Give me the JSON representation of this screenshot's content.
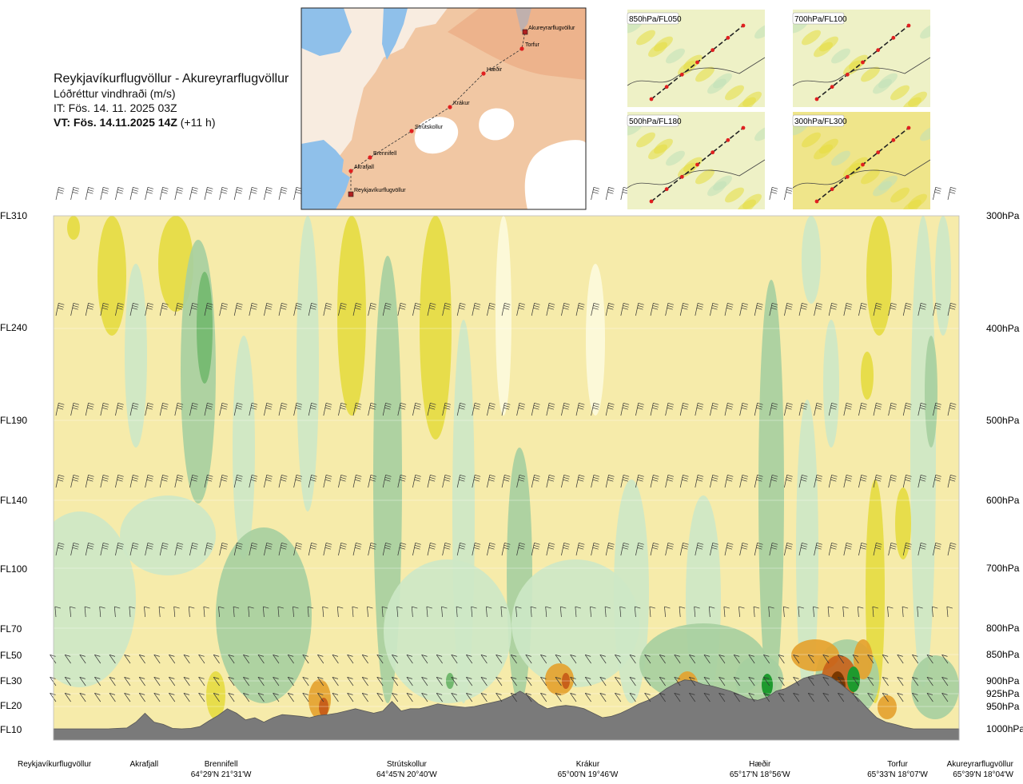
{
  "header": {
    "title": "Reykjavíkurflugvöllur - Akureyrarflugvöllur",
    "subtitle": "Lóðréttur vindhraði (m/s)",
    "issue_time": "IT: Fös. 14. 11. 2025 03Z",
    "valid_time_bold": "VT: Fös. 14.11.2025 14Z",
    "valid_time_offset": "(+11 h)"
  },
  "inset_map": {
    "points": [
      {
        "name": "Akureyrarflugvöllur"
      },
      {
        "name": "Torfur"
      },
      {
        "name": "Hæðir"
      },
      {
        "name": "Krákur"
      },
      {
        "name": "Strútskollur"
      },
      {
        "name": "Brennifell"
      },
      {
        "name": "Akrafjall"
      },
      {
        "name": "Reykjavíkurflugvöllur"
      }
    ]
  },
  "level_panels": [
    {
      "label": "850hPa/FL050"
    },
    {
      "label": "700hPa/FL100"
    },
    {
      "label": "500hPa/FL180"
    },
    {
      "label": "300hPa/FL300"
    }
  ],
  "chart_data": {
    "type": "heatmap",
    "title": "Reykjavíkurflugvöllur - Akureyrarflugvöllur",
    "subtitle": "Lóðréttur vindhraði (m/s)",
    "left_axis_ticks": [
      "FL310",
      "FL240",
      "FL190",
      "FL140",
      "FL100",
      "FL70",
      "FL50",
      "FL30",
      "FL20",
      "FL10"
    ],
    "right_axis_ticks": [
      "300hPa",
      "400hPa",
      "500hPa",
      "600hPa",
      "700hPa",
      "800hPa",
      "850hPa",
      "900hPa",
      "925hPa",
      "950hPa",
      "1000hPa"
    ],
    "pressure_levels_hpa": [
      300,
      400,
      500,
      600,
      700,
      800,
      850,
      900,
      925,
      950,
      1000
    ],
    "waypoints": [
      {
        "name": "Reykjavíkurflugvöllur",
        "coord": "",
        "dist": 0
      },
      {
        "name": "Akrafjall",
        "coord": "",
        "dist": 0.1
      },
      {
        "name": "Brennifell",
        "coord": "64°29'N 21°31'W",
        "dist": 0.185
      },
      {
        "name": "Strútskollur",
        "coord": "64°45'N 20°40'W",
        "dist": 0.39
      },
      {
        "name": "Krákur",
        "coord": "65°00'N 19°46'W",
        "dist": 0.59
      },
      {
        "name": "Hæðir",
        "coord": "65°17'N 18°56'W",
        "dist": 0.78
      },
      {
        "name": "Torfur",
        "coord": "65°33'N 18°07'W",
        "dist": 0.955
      },
      {
        "name": "Akureyrarflugvöllur",
        "coord": "65°39'N 18°04'W",
        "dist": 1.0
      }
    ],
    "terrain_elevation_hpa": [
      1000,
      1000,
      1000,
      1000,
      1000,
      1000,
      1000,
      999,
      998,
      985,
      965,
      985,
      990,
      999,
      1000,
      999,
      995,
      982,
      970,
      955,
      965,
      980,
      975,
      985,
      975,
      968,
      970,
      972,
      975,
      970,
      968,
      965,
      960,
      955,
      960,
      965,
      960,
      940,
      960,
      955,
      955,
      950,
      945,
      948,
      950,
      952,
      950,
      946,
      942,
      938,
      930,
      920,
      930,
      945,
      955,
      950,
      948,
      950,
      955,
      965,
      975,
      972,
      965,
      955,
      945,
      938,
      928,
      915,
      905,
      898,
      900,
      907,
      910,
      915,
      920,
      927,
      935,
      938,
      932,
      920,
      915,
      905,
      895,
      890,
      887,
      893,
      905,
      920,
      935,
      955,
      975,
      985,
      990,
      996,
      1000,
      1000,
      1000,
      1000,
      1000,
      1000
    ],
    "dominant_category": "weak vertical motion (near 0 m/s)",
    "colors": {
      "strong_down": "#7a3800",
      "moderate_down": "#c8601a",
      "down": "#e4a12c",
      "weak_down": "#e6dc40",
      "slight_down": "#f3eaa2",
      "neutral": "#fdfbdd",
      "slight_up": "#cde8c6",
      "up": "#a6cfa0",
      "moderate_up": "#72b86e",
      "strong_up": "#1e9a2e",
      "terrain": "#7a7a7a"
    },
    "grid": true,
    "legend": "none"
  }
}
